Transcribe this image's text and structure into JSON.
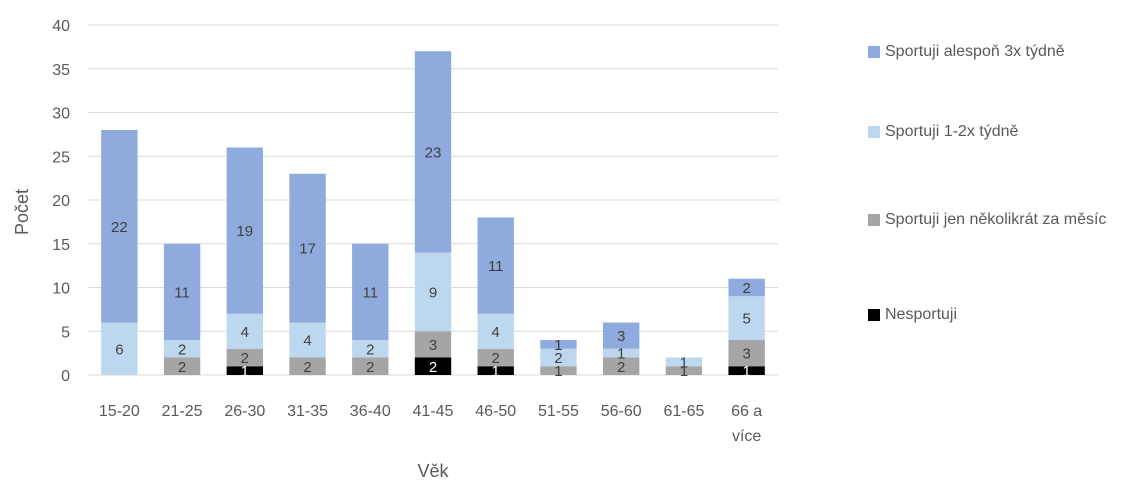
{
  "chart_data": {
    "type": "bar",
    "stacked": true,
    "title": "",
    "xlabel": "Věk",
    "ylabel": "Počet",
    "ylim": [
      0,
      40
    ],
    "yticks": [
      0,
      5,
      10,
      15,
      20,
      25,
      30,
      35,
      40
    ],
    "grid": true,
    "legend_position": "right",
    "categories": [
      "15-20",
      "21-25",
      "26-30",
      "31-35",
      "36-40",
      "41-45",
      "46-50",
      "51-55",
      "56-60",
      "61-65",
      "66 a více"
    ],
    "series": [
      {
        "name": "Nesportuji",
        "color": "#000000",
        "values": [
          0,
          0,
          1,
          0,
          0,
          2,
          1,
          0,
          0,
          0,
          1
        ]
      },
      {
        "name": "Sportuji jen několikrát za měsíc",
        "color": "#a5a5a5",
        "values": [
          0,
          2,
          2,
          2,
          2,
          3,
          2,
          1,
          2,
          1,
          3
        ]
      },
      {
        "name": "Sportuji 1-2x týdně",
        "color": "#bdd7ee",
        "values": [
          6,
          2,
          4,
          4,
          2,
          9,
          4,
          2,
          1,
          1,
          5
        ]
      },
      {
        "name": "Sportuji alespoň 3x týdně",
        "color": "#8faadc",
        "values": [
          22,
          11,
          19,
          17,
          11,
          23,
          11,
          1,
          3,
          0,
          2
        ]
      }
    ]
  }
}
